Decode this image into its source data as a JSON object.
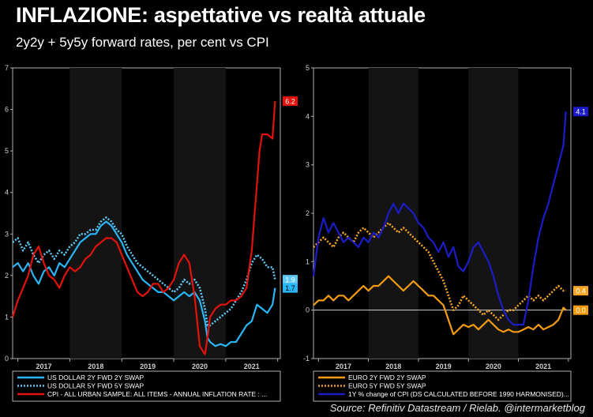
{
  "header": {
    "title": "INFLAZIONE: aspettative vs realtà attuale",
    "subtitle": "2y2y + 5y5y forward rates, per cent vs CPI"
  },
  "footer": {
    "source": "Source: Refinitiv Datastream / Rielab. @intermarketblog"
  },
  "colors": {
    "background": "#000000",
    "us_2y": "#29b6f6",
    "us_5y": "#5ec8f5",
    "us_cpi": "#e3120b",
    "eur_2y": "#f39c12",
    "eur_5y": "#f5a623",
    "eur_cpi": "#1c1cc8"
  },
  "chart_data": [
    {
      "type": "line",
      "panel": "left",
      "xlim": [
        2016.4,
        2021.55
      ],
      "ylim": [
        0,
        7
      ],
      "grid": false,
      "legend_position": "bottom",
      "x_ticks": [
        2017,
        2018,
        2019,
        2020,
        2021
      ],
      "x_tick_labels": [
        "2017",
        "2018",
        "2019",
        "2020",
        "2021"
      ],
      "y_ticks": [
        0,
        1,
        2,
        3,
        4,
        5,
        6,
        7
      ],
      "y_tick_labels": [
        "0",
        "1",
        "2",
        "3",
        "4",
        "5",
        "6",
        "7"
      ],
      "end_labels": [
        {
          "series": 2,
          "text": "6.2",
          "value": 6.2
        },
        {
          "series": 1,
          "text": "1.9",
          "value": 1.9
        },
        {
          "series": 0,
          "text": "1.7",
          "value": 1.7
        }
      ],
      "series": [
        {
          "name": "US DOLLAR 2Y FWD 2Y SWAP",
          "style": "solid",
          "x": [
            2016.4,
            2016.5,
            2016.6,
            2016.7,
            2016.8,
            2016.9,
            2017.0,
            2017.1,
            2017.2,
            2017.3,
            2017.4,
            2017.5,
            2017.6,
            2017.7,
            2017.8,
            2017.9,
            2018.0,
            2018.1,
            2018.2,
            2018.3,
            2018.4,
            2018.5,
            2018.6,
            2018.7,
            2018.8,
            2018.9,
            2019.0,
            2019.1,
            2019.2,
            2019.3,
            2019.4,
            2019.5,
            2019.6,
            2019.7,
            2019.8,
            2019.9,
            2020.0,
            2020.1,
            2020.15,
            2020.2,
            2020.3,
            2020.4,
            2020.5,
            2020.6,
            2020.7,
            2020.8,
            2020.9,
            2021.0,
            2021.1,
            2021.2,
            2021.3,
            2021.4,
            2021.45
          ],
          "y": [
            2.2,
            2.3,
            2.1,
            2.3,
            2.0,
            1.8,
            2.1,
            2.2,
            2.0,
            2.3,
            2.2,
            2.4,
            2.6,
            2.8,
            2.9,
            3.0,
            3.0,
            3.2,
            3.3,
            3.2,
            3.0,
            2.8,
            2.5,
            2.3,
            2.1,
            1.9,
            1.8,
            1.7,
            1.6,
            1.6,
            1.5,
            1.4,
            1.5,
            1.6,
            1.5,
            1.6,
            1.4,
            0.9,
            0.5,
            0.4,
            0.3,
            0.35,
            0.3,
            0.4,
            0.4,
            0.6,
            0.8,
            0.9,
            1.3,
            1.2,
            1.1,
            1.3,
            1.7
          ]
        },
        {
          "name": "US DOLLAR 5Y FWD 5Y SWAP",
          "style": "dotted",
          "x": [
            2016.4,
            2016.5,
            2016.6,
            2016.7,
            2016.8,
            2016.9,
            2017.0,
            2017.1,
            2017.2,
            2017.3,
            2017.4,
            2017.5,
            2017.6,
            2017.7,
            2017.8,
            2017.9,
            2018.0,
            2018.1,
            2018.2,
            2018.3,
            2018.4,
            2018.5,
            2018.6,
            2018.7,
            2018.8,
            2018.9,
            2019.0,
            2019.1,
            2019.2,
            2019.3,
            2019.4,
            2019.5,
            2019.6,
            2019.7,
            2019.8,
            2019.9,
            2020.0,
            2020.1,
            2020.15,
            2020.2,
            2020.3,
            2020.4,
            2020.5,
            2020.6,
            2020.7,
            2020.8,
            2020.9,
            2021.0,
            2021.1,
            2021.2,
            2021.3,
            2021.4,
            2021.45
          ],
          "y": [
            2.8,
            2.9,
            2.6,
            2.8,
            2.5,
            2.3,
            2.5,
            2.6,
            2.4,
            2.6,
            2.5,
            2.7,
            2.8,
            3.0,
            3.0,
            3.1,
            3.1,
            3.3,
            3.4,
            3.3,
            3.1,
            3.0,
            2.7,
            2.5,
            2.3,
            2.2,
            2.1,
            2.0,
            1.9,
            1.8,
            1.7,
            1.6,
            1.7,
            1.9,
            1.8,
            1.9,
            1.7,
            1.2,
            0.8,
            0.8,
            0.9,
            1.0,
            1.1,
            1.2,
            1.4,
            1.6,
            1.9,
            2.3,
            2.5,
            2.4,
            2.2,
            2.2,
            1.9
          ]
        },
        {
          "name": "CPI - ALL URBAN SAMPLE: ALL ITEMS - ANNUAL INFLATION RATE : ...",
          "style": "solid",
          "x": [
            2016.4,
            2016.5,
            2016.6,
            2016.7,
            2016.8,
            2016.9,
            2017.0,
            2017.1,
            2017.2,
            2017.3,
            2017.4,
            2017.5,
            2017.6,
            2017.7,
            2017.8,
            2017.9,
            2018.0,
            2018.1,
            2018.2,
            2018.3,
            2018.4,
            2018.5,
            2018.6,
            2018.7,
            2018.8,
            2018.9,
            2019.0,
            2019.1,
            2019.2,
            2019.3,
            2019.4,
            2019.5,
            2019.6,
            2019.7,
            2019.8,
            2019.9,
            2020.0,
            2020.1,
            2020.15,
            2020.2,
            2020.3,
            2020.4,
            2020.5,
            2020.6,
            2020.7,
            2020.8,
            2020.9,
            2021.0,
            2021.1,
            2021.15,
            2021.2,
            2021.3,
            2021.4,
            2021.45
          ],
          "y": [
            1.0,
            1.4,
            1.7,
            2.0,
            2.5,
            2.7,
            2.3,
            2.0,
            1.9,
            1.7,
            2.0,
            2.2,
            2.1,
            2.2,
            2.4,
            2.5,
            2.7,
            2.8,
            2.9,
            2.9,
            2.8,
            2.5,
            2.2,
            1.9,
            1.6,
            1.5,
            1.6,
            1.8,
            1.8,
            1.6,
            1.7,
            1.9,
            2.3,
            2.5,
            2.3,
            1.5,
            0.3,
            0.1,
            0.5,
            1.0,
            1.2,
            1.3,
            1.3,
            1.4,
            1.4,
            1.5,
            1.7,
            2.6,
            4.2,
            5.0,
            5.4,
            5.4,
            5.3,
            6.2
          ]
        }
      ]
    },
    {
      "type": "line",
      "panel": "right",
      "xlim": [
        2016.4,
        2021.55
      ],
      "ylim": [
        -1,
        5
      ],
      "grid": false,
      "legend_position": "bottom",
      "x_ticks": [
        2017,
        2018,
        2019,
        2020,
        2021
      ],
      "x_tick_labels": [
        "2017",
        "2018",
        "2019",
        "2020",
        "2021"
      ],
      "y_ticks": [
        -1,
        0,
        1,
        2,
        3,
        4,
        5
      ],
      "y_tick_labels": [
        "-1",
        "0",
        "1",
        "2",
        "3",
        "4",
        "5"
      ],
      "end_labels": [
        {
          "series": 2,
          "text": "4.1",
          "value": 4.1
        },
        {
          "series": 1,
          "text": "0.4",
          "value": 0.4
        },
        {
          "series": 0,
          "text": "0.0",
          "value": 0.0
        }
      ],
      "series": [
        {
          "name": "EURO 2Y FWD 2Y SWAP",
          "style": "solid",
          "x": [
            2016.4,
            2016.5,
            2016.6,
            2016.7,
            2016.8,
            2016.9,
            2017.0,
            2017.1,
            2017.2,
            2017.3,
            2017.4,
            2017.5,
            2017.6,
            2017.7,
            2017.8,
            2017.9,
            2018.0,
            2018.1,
            2018.2,
            2018.3,
            2018.4,
            2018.5,
            2018.6,
            2018.7,
            2018.8,
            2018.9,
            2019.0,
            2019.1,
            2019.2,
            2019.3,
            2019.4,
            2019.5,
            2019.6,
            2019.7,
            2019.8,
            2019.9,
            2020.0,
            2020.1,
            2020.2,
            2020.3,
            2020.4,
            2020.5,
            2020.6,
            2020.7,
            2020.8,
            2020.9,
            2021.0,
            2021.1,
            2021.2,
            2021.3,
            2021.4,
            2021.45
          ],
          "y": [
            0.1,
            0.2,
            0.2,
            0.3,
            0.2,
            0.3,
            0.3,
            0.2,
            0.3,
            0.4,
            0.5,
            0.4,
            0.5,
            0.5,
            0.6,
            0.7,
            0.6,
            0.5,
            0.4,
            0.5,
            0.6,
            0.5,
            0.4,
            0.3,
            0.3,
            0.2,
            0.1,
            -0.2,
            -0.5,
            -0.4,
            -0.3,
            -0.35,
            -0.3,
            -0.4,
            -0.3,
            -0.2,
            -0.3,
            -0.4,
            -0.45,
            -0.4,
            -0.45,
            -0.45,
            -0.4,
            -0.35,
            -0.4,
            -0.3,
            -0.4,
            -0.35,
            -0.3,
            -0.2,
            0.05,
            0.0
          ]
        },
        {
          "name": "EURO 5Y FWD 5Y SWAP",
          "style": "dotted",
          "x": [
            2016.4,
            2016.5,
            2016.6,
            2016.7,
            2016.8,
            2016.9,
            2017.0,
            2017.1,
            2017.2,
            2017.3,
            2017.4,
            2017.5,
            2017.6,
            2017.7,
            2017.8,
            2017.9,
            2018.0,
            2018.1,
            2018.2,
            2018.3,
            2018.4,
            2018.5,
            2018.6,
            2018.7,
            2018.8,
            2018.9,
            2019.0,
            2019.1,
            2019.2,
            2019.3,
            2019.4,
            2019.5,
            2019.6,
            2019.7,
            2019.8,
            2019.9,
            2020.0,
            2020.1,
            2020.2,
            2020.3,
            2020.4,
            2020.5,
            2020.6,
            2020.7,
            2020.8,
            2020.9,
            2021.0,
            2021.1,
            2021.2,
            2021.3,
            2021.4,
            2021.45
          ],
          "y": [
            1.3,
            1.4,
            1.5,
            1.4,
            1.3,
            1.5,
            1.6,
            1.5,
            1.4,
            1.6,
            1.7,
            1.6,
            1.5,
            1.6,
            1.7,
            1.8,
            1.7,
            1.6,
            1.7,
            1.6,
            1.5,
            1.4,
            1.3,
            1.2,
            1.0,
            0.8,
            0.6,
            0.3,
            0.0,
            0.1,
            0.3,
            0.2,
            0.1,
            0.0,
            -0.1,
            0.0,
            -0.1,
            -0.2,
            -0.1,
            0.0,
            0.0,
            0.1,
            0.2,
            0.3,
            0.2,
            0.3,
            0.2,
            0.3,
            0.4,
            0.5,
            0.4,
            0.4
          ]
        },
        {
          "name": "1Y % change of CPI (DS CALCULATED BEFORE 1990 HARMONISED)...",
          "style": "solid",
          "x": [
            2016.4,
            2016.5,
            2016.6,
            2016.7,
            2016.8,
            2016.9,
            2017.0,
            2017.1,
            2017.2,
            2017.3,
            2017.4,
            2017.5,
            2017.6,
            2017.7,
            2017.8,
            2017.9,
            2018.0,
            2018.1,
            2018.2,
            2018.3,
            2018.4,
            2018.5,
            2018.6,
            2018.7,
            2018.8,
            2018.9,
            2019.0,
            2019.1,
            2019.2,
            2019.3,
            2019.4,
            2019.5,
            2019.6,
            2019.7,
            2019.8,
            2019.9,
            2020.0,
            2020.1,
            2020.2,
            2020.3,
            2020.4,
            2020.5,
            2020.6,
            2020.7,
            2020.8,
            2020.9,
            2021.0,
            2021.1,
            2021.2,
            2021.3,
            2021.4,
            2021.45
          ],
          "y": [
            0.7,
            1.5,
            1.9,
            1.6,
            1.8,
            1.6,
            1.4,
            1.5,
            1.4,
            1.3,
            1.5,
            1.4,
            1.6,
            1.5,
            1.7,
            2.0,
            2.2,
            2.0,
            2.2,
            2.1,
            2.0,
            1.8,
            1.7,
            1.5,
            1.4,
            1.2,
            1.4,
            1.1,
            1.3,
            0.9,
            0.8,
            1.0,
            1.3,
            1.4,
            1.2,
            1.0,
            0.7,
            0.3,
            0.0,
            -0.2,
            -0.3,
            -0.3,
            -0.3,
            0.2,
            0.9,
            1.5,
            1.9,
            2.2,
            2.6,
            3.0,
            3.4,
            4.1
          ]
        }
      ]
    }
  ]
}
